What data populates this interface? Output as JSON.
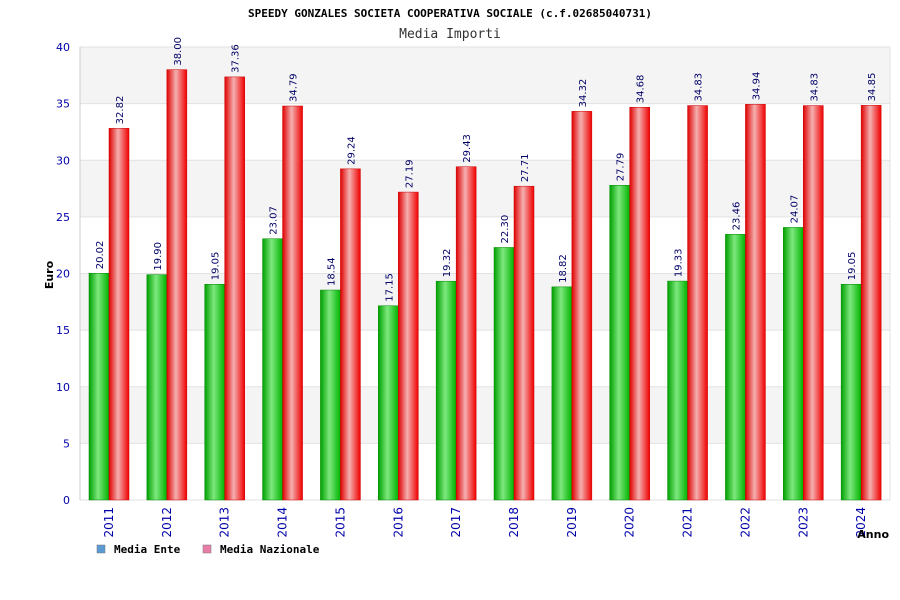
{
  "chart_data": {
    "type": "bar",
    "title": "SPEEDY GONZALES SOCIETA COOPERATIVA SOCIALE (c.f.02685040731)",
    "subtitle": "Media Importi",
    "xlabel": "Anno",
    "ylabel": "Euro",
    "ylim": [
      0,
      40
    ],
    "yticks": [
      0,
      5,
      10,
      15,
      20,
      25,
      30,
      35,
      40
    ],
    "grid": true,
    "legend_position": "bottom-left",
    "categories": [
      "2011",
      "2012",
      "2013",
      "2014",
      "2015",
      "2016",
      "2017",
      "2018",
      "2019",
      "2020",
      "2021",
      "2022",
      "2023",
      "2024"
    ],
    "series": [
      {
        "name": "Media Ente",
        "bar_color": "#00cc00",
        "legend_color": "#5b9bd5",
        "values": [
          20.02,
          19.9,
          19.05,
          23.07,
          18.54,
          17.15,
          19.32,
          22.3,
          18.82,
          27.79,
          19.33,
          23.46,
          24.07,
          19.05
        ],
        "labels": [
          "20.02",
          "19.90",
          "19.05",
          "23.07",
          "18.54",
          "17.15",
          "19.32",
          "22.30",
          "18.82",
          "27.79",
          "19.33",
          "23.46",
          "24.07",
          "19.05"
        ]
      },
      {
        "name": "Media Nazionale",
        "bar_color": "#ee0000",
        "legend_color": "#e87ea8",
        "values": [
          32.82,
          38.0,
          37.36,
          34.79,
          29.24,
          27.19,
          29.43,
          27.71,
          34.32,
          34.68,
          34.83,
          34.94,
          34.83,
          34.85
        ],
        "labels": [
          "32.82",
          "38.00",
          "37.36",
          "34.79",
          "29.24",
          "27.19",
          "29.43",
          "27.71",
          "34.32",
          "34.68",
          "34.83",
          "34.94",
          "34.83",
          "34.85"
        ]
      }
    ]
  }
}
